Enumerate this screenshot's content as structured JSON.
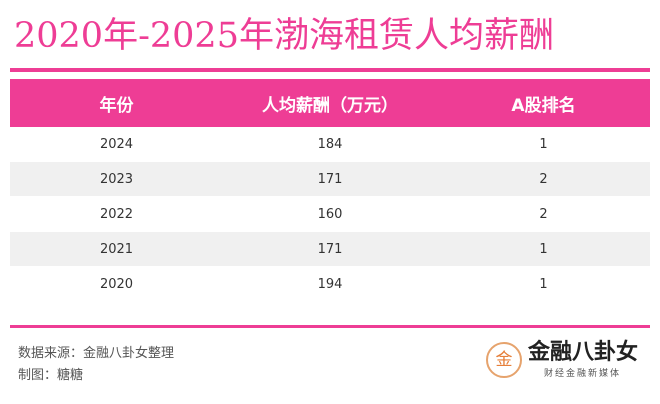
{
  "title": "2020年-2025年渤海租赁人均薪酬",
  "table": {
    "headers": [
      "年份",
      "人均薪酬（万元）",
      "A股排名"
    ],
    "rows": [
      [
        "2024",
        "184",
        "1"
      ],
      [
        "2023",
        "171",
        "2"
      ],
      [
        "2022",
        "160",
        "2"
      ],
      [
        "2021",
        "171",
        "1"
      ],
      [
        "2020",
        "194",
        "1"
      ]
    ]
  },
  "footer": {
    "source": "数据来源：金融八卦女整理",
    "maker": "制图：糖糖"
  },
  "logo": {
    "mark": "金",
    "name": "金融八卦女",
    "subtitle": "财经金融新媒体"
  },
  "colors": {
    "accent": "#ee3d95",
    "row_alt": "#f0f0f0"
  }
}
